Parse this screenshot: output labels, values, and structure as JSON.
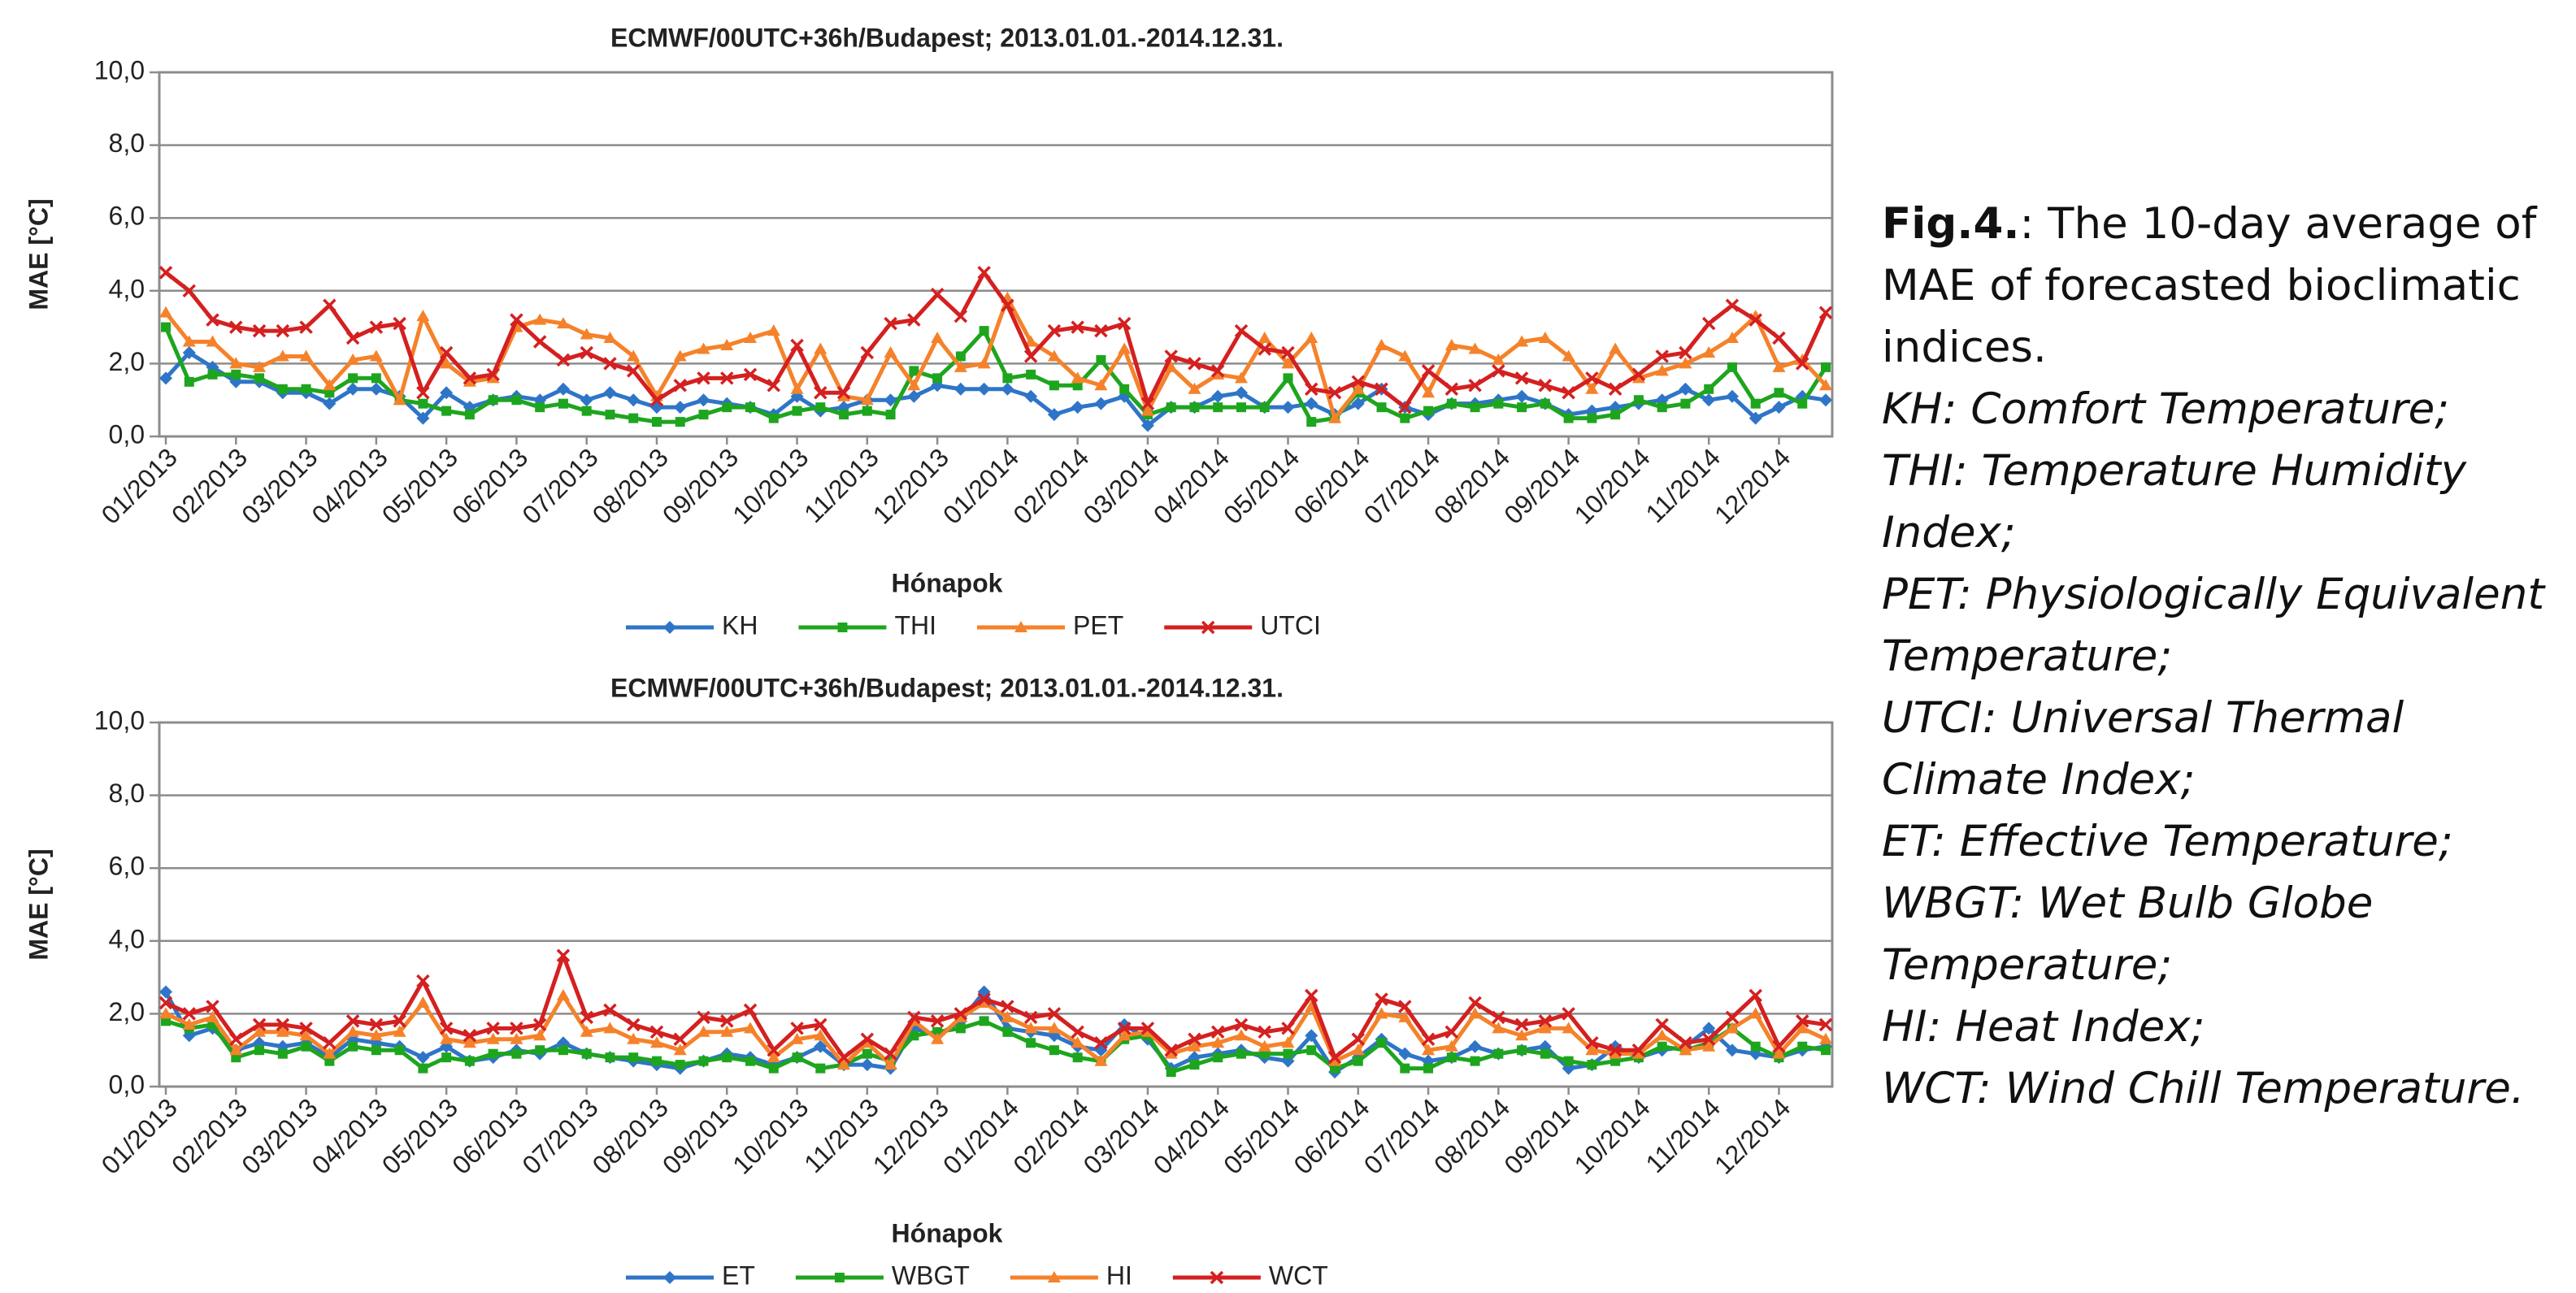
{
  "chart_data": [
    {
      "type": "line",
      "title": "ECMWF/00UTC+36h/Budapest; 2013.01.01.-2014.12.31.",
      "x_label": "Hónapok",
      "y_label": "MAE [°C]",
      "categories": [
        "01/2013",
        null,
        null,
        "02/2013",
        null,
        null,
        "03/2013",
        null,
        null,
        "04/2013",
        null,
        null,
        "05/2013",
        null,
        null,
        "06/2013",
        null,
        null,
        "07/2013",
        null,
        null,
        "08/2013",
        null,
        null,
        "09/2013",
        null,
        null,
        "10/2013",
        null,
        null,
        "11/2013",
        null,
        null,
        "12/2013",
        null,
        null,
        "01/2014",
        null,
        null,
        "02/2014",
        null,
        null,
        "03/2014",
        null,
        null,
        "04/2014",
        null,
        null,
        "05/2014",
        null,
        null,
        "06/2014",
        null,
        null,
        "07/2014",
        null,
        null,
        "08/2014",
        null,
        null,
        "09/2014",
        null,
        null,
        "10/2014",
        null,
        null,
        "11/2014",
        null,
        null,
        "12/2014",
        null,
        null
      ],
      "series": [
        {
          "name": "KH",
          "color": "#2e75c8",
          "marker": "diamond",
          "values": [
            1.6,
            2.3,
            1.9,
            1.5,
            1.5,
            1.2,
            1.2,
            0.9,
            1.3,
            1.3,
            1.1,
            0.5,
            1.2,
            0.8,
            1.0,
            1.1,
            1.0,
            1.3,
            1.0,
            1.2,
            1.0,
            0.8,
            0.8,
            1.0,
            0.9,
            0.8,
            0.6,
            1.1,
            0.7,
            0.8,
            1.0,
            1.0,
            1.1,
            1.4,
            1.3,
            1.3,
            1.3,
            1.1,
            0.6,
            0.8,
            0.9,
            1.1,
            0.3,
            0.8,
            0.8,
            1.1,
            1.2,
            0.8,
            0.8,
            0.9,
            0.6,
            0.9,
            1.3,
            0.8,
            0.6,
            0.9,
            0.9,
            1.0,
            1.1,
            0.9,
            0.6,
            0.7,
            0.8,
            0.9,
            1.0,
            1.3,
            1.0,
            1.1,
            0.5,
            0.8,
            1.1,
            1.0
          ]
        },
        {
          "name": "THI",
          "color": "#1ea51e",
          "marker": "square",
          "values": [
            3.0,
            1.5,
            1.7,
            1.7,
            1.6,
            1.3,
            1.3,
            1.2,
            1.6,
            1.6,
            1.0,
            0.9,
            0.7,
            0.6,
            1.0,
            1.0,
            0.8,
            0.9,
            0.7,
            0.6,
            0.5,
            0.4,
            0.4,
            0.6,
            0.8,
            0.8,
            0.5,
            0.7,
            0.8,
            0.6,
            0.7,
            0.6,
            1.8,
            1.6,
            2.2,
            2.9,
            1.6,
            1.7,
            1.4,
            1.4,
            2.1,
            1.3,
            0.6,
            0.8,
            0.8,
            0.8,
            0.8,
            0.8,
            1.6,
            0.4,
            0.5,
            1.2,
            0.8,
            0.5,
            0.7,
            0.9,
            0.8,
            0.9,
            0.8,
            0.9,
            0.5,
            0.5,
            0.6,
            1.0,
            0.8,
            0.9,
            1.3,
            1.9,
            0.9,
            1.2,
            0.9,
            1.9
          ]
        },
        {
          "name": "PET",
          "color": "#f5822a",
          "marker": "triangle",
          "values": [
            3.4,
            2.6,
            2.6,
            2.0,
            1.9,
            2.2,
            2.2,
            1.4,
            2.1,
            2.2,
            1.0,
            3.3,
            2.0,
            1.5,
            1.6,
            3.0,
            3.2,
            3.1,
            2.8,
            2.7,
            2.2,
            1.1,
            2.2,
            2.4,
            2.5,
            2.7,
            2.9,
            1.3,
            2.4,
            1.1,
            1.0,
            2.3,
            1.4,
            2.7,
            1.9,
            2.0,
            3.8,
            2.6,
            2.2,
            1.6,
            1.4,
            2.4,
            0.7,
            1.9,
            1.3,
            1.7,
            1.6,
            2.7,
            2.0,
            2.7,
            0.5,
            1.3,
            2.5,
            2.2,
            1.2,
            2.5,
            2.4,
            2.1,
            2.6,
            2.7,
            2.2,
            1.3,
            2.4,
            1.6,
            1.8,
            2.0,
            2.3,
            2.7,
            3.3,
            1.9,
            2.1,
            1.4
          ]
        },
        {
          "name": "UTCI",
          "color": "#d42020",
          "marker": "x",
          "values": [
            4.5,
            4.0,
            3.2,
            3.0,
            2.9,
            2.9,
            3.0,
            3.6,
            2.7,
            3.0,
            3.1,
            1.2,
            2.3,
            1.6,
            1.7,
            3.2,
            2.6,
            2.1,
            2.3,
            2.0,
            1.8,
            1.0,
            1.4,
            1.6,
            1.6,
            1.7,
            1.4,
            2.5,
            1.2,
            1.2,
            2.3,
            3.1,
            3.2,
            3.9,
            3.3,
            4.5,
            3.6,
            2.2,
            2.9,
            3.0,
            2.9,
            3.1,
            0.9,
            2.2,
            2.0,
            1.8,
            2.9,
            2.4,
            2.3,
            1.3,
            1.2,
            1.5,
            1.3,
            0.8,
            1.8,
            1.3,
            1.4,
            1.8,
            1.6,
            1.4,
            1.2,
            1.6,
            1.3,
            1.7,
            2.2,
            2.3,
            3.1,
            3.6,
            3.2,
            2.7,
            2.0,
            3.4
          ]
        }
      ],
      "ylim": [
        0,
        10
      ],
      "yticks": [
        {
          "value": 0,
          "label": "0,0"
        },
        {
          "value": 2,
          "label": "2,0"
        },
        {
          "value": 4,
          "label": "4,0"
        },
        {
          "value": 6,
          "label": "6,0"
        },
        {
          "value": 8,
          "label": "8,0"
        },
        {
          "value": 10,
          "label": "10,0"
        }
      ],
      "grid": true,
      "legend": "bottom"
    },
    {
      "type": "line",
      "title": "ECMWF/00UTC+36h/Budapest; 2013.01.01.-2014.12.31.",
      "x_label": "Hónapok",
      "y_label": "MAE [°C]",
      "categories": [
        "01/2013",
        null,
        null,
        "02/2013",
        null,
        null,
        "03/2013",
        null,
        null,
        "04/2013",
        null,
        null,
        "05/2013",
        null,
        null,
        "06/2013",
        null,
        null,
        "07/2013",
        null,
        null,
        "08/2013",
        null,
        null,
        "09/2013",
        null,
        null,
        "10/2013",
        null,
        null,
        "11/2013",
        null,
        null,
        "12/2013",
        null,
        null,
        "01/2014",
        null,
        null,
        "02/2014",
        null,
        null,
        "03/2014",
        null,
        null,
        "04/2014",
        null,
        null,
        "05/2014",
        null,
        null,
        "06/2014",
        null,
        null,
        "07/2014",
        null,
        null,
        "08/2014",
        null,
        null,
        "09/2014",
        null,
        null,
        "10/2014",
        null,
        null,
        "11/2014",
        null,
        null,
        "12/2014",
        null,
        null
      ],
      "series": [
        {
          "name": "ET",
          "color": "#2e75c8",
          "marker": "diamond",
          "values": [
            2.6,
            1.4,
            1.6,
            1.0,
            1.2,
            1.1,
            1.2,
            0.8,
            1.3,
            1.2,
            1.1,
            0.8,
            1.1,
            0.7,
            0.8,
            1.0,
            0.9,
            1.2,
            0.9,
            0.8,
            0.7,
            0.6,
            0.5,
            0.7,
            0.9,
            0.8,
            0.6,
            0.8,
            1.1,
            0.6,
            0.6,
            0.5,
            1.6,
            1.4,
            1.8,
            2.6,
            1.6,
            1.5,
            1.4,
            1.1,
            1.0,
            1.7,
            1.3,
            0.5,
            0.8,
            0.9,
            1.0,
            0.8,
            0.7,
            1.4,
            0.4,
            0.8,
            1.3,
            0.9,
            0.7,
            0.8,
            1.1,
            0.9,
            1.0,
            1.1,
            0.5,
            0.6,
            1.1,
            0.8,
            1.0,
            1.1,
            1.6,
            1.0,
            0.9,
            0.8,
            1.0,
            1.1
          ]
        },
        {
          "name": "WBGT",
          "color": "#1ea51e",
          "marker": "square",
          "values": [
            1.8,
            1.6,
            1.7,
            0.8,
            1.0,
            0.9,
            1.1,
            0.7,
            1.1,
            1.0,
            1.0,
            0.5,
            0.8,
            0.7,
            0.9,
            0.9,
            1.0,
            1.0,
            0.9,
            0.8,
            0.8,
            0.7,
            0.6,
            0.7,
            0.8,
            0.7,
            0.5,
            0.8,
            0.5,
            0.6,
            0.9,
            0.7,
            1.4,
            1.5,
            1.6,
            1.8,
            1.5,
            1.2,
            1.0,
            0.8,
            0.7,
            1.3,
            1.4,
            0.4,
            0.6,
            0.8,
            0.9,
            0.9,
            0.9,
            1.0,
            0.5,
            0.7,
            1.2,
            0.5,
            0.5,
            0.8,
            0.7,
            0.9,
            1.0,
            0.9,
            0.7,
            0.6,
            0.7,
            0.8,
            1.1,
            1.0,
            1.2,
            1.6,
            1.1,
            0.8,
            1.1,
            1.0
          ]
        },
        {
          "name": "HI",
          "color": "#f5822a",
          "marker": "triangle",
          "values": [
            2.0,
            1.7,
            1.9,
            1.0,
            1.5,
            1.5,
            1.4,
            0.9,
            1.5,
            1.4,
            1.5,
            2.3,
            1.3,
            1.2,
            1.3,
            1.3,
            1.4,
            2.5,
            1.5,
            1.6,
            1.3,
            1.2,
            1.0,
            1.5,
            1.5,
            1.6,
            0.8,
            1.3,
            1.4,
            0.6,
            1.2,
            0.6,
            1.8,
            1.3,
            1.9,
            2.3,
            1.9,
            1.6,
            1.6,
            1.2,
            0.7,
            1.4,
            1.5,
            0.9,
            1.1,
            1.2,
            1.4,
            1.1,
            1.2,
            2.2,
            0.7,
            1.0,
            2.0,
            1.9,
            1.0,
            1.1,
            2.0,
            1.6,
            1.4,
            1.6,
            1.6,
            1.0,
            0.9,
            0.9,
            1.4,
            1.0,
            1.1,
            1.6,
            2.0,
            0.9,
            1.6,
            1.3
          ]
        },
        {
          "name": "WCT",
          "color": "#d42020",
          "marker": "x",
          "values": [
            2.3,
            2.0,
            2.2,
            1.3,
            1.7,
            1.7,
            1.6,
            1.2,
            1.8,
            1.7,
            1.8,
            2.9,
            1.6,
            1.4,
            1.6,
            1.6,
            1.7,
            3.6,
            1.9,
            2.1,
            1.7,
            1.5,
            1.3,
            1.9,
            1.8,
            2.1,
            1.0,
            1.6,
            1.7,
            0.8,
            1.3,
            0.9,
            1.9,
            1.8,
            2.0,
            2.4,
            2.2,
            1.9,
            2.0,
            1.5,
            1.2,
            1.6,
            1.6,
            1.0,
            1.3,
            1.5,
            1.7,
            1.5,
            1.6,
            2.5,
            0.8,
            1.3,
            2.4,
            2.2,
            1.3,
            1.5,
            2.3,
            1.9,
            1.7,
            1.8,
            2.0,
            1.2,
            1.0,
            1.0,
            1.7,
            1.2,
            1.3,
            1.9,
            2.5,
            1.1,
            1.8,
            1.7
          ]
        }
      ],
      "ylim": [
        0,
        10
      ],
      "yticks": [
        {
          "value": 0,
          "label": "0,0"
        },
        {
          "value": 2,
          "label": "2,0"
        },
        {
          "value": 4,
          "label": "4,0"
        },
        {
          "value": 6,
          "label": "6,0"
        },
        {
          "value": 8,
          "label": "8,0"
        },
        {
          "value": 10,
          "label": "10,0"
        }
      ],
      "grid": true,
      "legend": "bottom"
    }
  ],
  "caption": {
    "lead_bold": "Fig.4.",
    "lead_text": ": The 10-day average of MAE of forecasted bioclimatic indices.",
    "items": [
      "KH: Comfort Temperature;",
      "THI: Temperature Humidity Index;",
      "PET: Physiologically Equivalent Temperature;",
      "UTCI: Universal Thermal Climate Index;",
      "ET: Effective Temperature;",
      "WBGT: Wet Bulb Globe Temperature;",
      "HI: Heat Index;",
      "WCT: Wind Chill Temperature."
    ]
  }
}
